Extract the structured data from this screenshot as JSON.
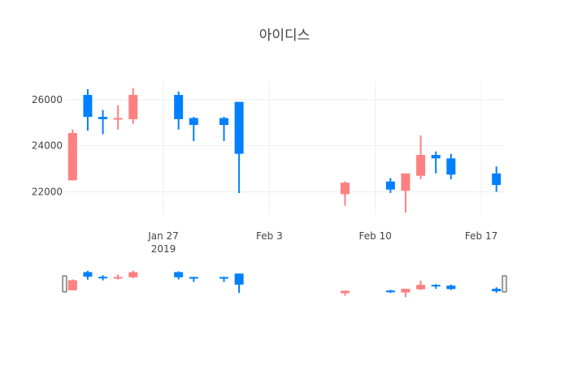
{
  "chart_data": {
    "type": "candlestick",
    "title": "아이디스",
    "xlabel": "",
    "ylabel": "",
    "ylim": [
      21000,
      26800
    ],
    "xlim": [
      "2019-01-21",
      "2019-02-18"
    ],
    "y_ticks": [
      22000,
      24000,
      26000
    ],
    "y_tick_labels": [
      "22000",
      "24000",
      "26000"
    ],
    "x_ticks": [
      "2019-01-27",
      "2019-02-03",
      "2019-02-10",
      "2019-02-17"
    ],
    "x_tick_labels": [
      "Jan 27",
      "Feb 3",
      "Feb 10",
      "Feb 17"
    ],
    "x_year_label": "2019",
    "grid": true,
    "increasing_color": "#0080ff",
    "decreasing_color": "#ff8080",
    "rangeslider": true,
    "candles": [
      {
        "date": "2019-01-21",
        "open": 24550,
        "high": 24700,
        "low": 22500,
        "close": 22500
      },
      {
        "date": "2019-01-22",
        "open": 25250,
        "high": 26450,
        "low": 24650,
        "close": 26200
      },
      {
        "date": "2019-01-23",
        "open": 25150,
        "high": 25550,
        "low": 24500,
        "close": 25250
      },
      {
        "date": "2019-01-24",
        "open": 25200,
        "high": 25750,
        "low": 24700,
        "close": 25150
      },
      {
        "date": "2019-01-25",
        "open": 26200,
        "high": 26500,
        "low": 24950,
        "close": 25150
      },
      {
        "date": "2019-01-28",
        "open": 25150,
        "high": 26350,
        "low": 24700,
        "close": 26200
      },
      {
        "date": "2019-01-29",
        "open": 24900,
        "high": 25250,
        "low": 24200,
        "close": 25200
      },
      {
        "date": "2019-01-31",
        "open": 24900,
        "high": 25250,
        "low": 24200,
        "close": 25200
      },
      {
        "date": "2019-02-01",
        "open": 23650,
        "high": 25900,
        "low": 21950,
        "close": 25900
      },
      {
        "date": "2019-02-08",
        "open": 22400,
        "high": 22450,
        "low": 21400,
        "close": 21900
      },
      {
        "date": "2019-02-11",
        "open": 22100,
        "high": 22600,
        "low": 21950,
        "close": 22450
      },
      {
        "date": "2019-02-12",
        "open": 22800,
        "high": 22800,
        "low": 21100,
        "close": 22050
      },
      {
        "date": "2019-02-13",
        "open": 23600,
        "high": 24450,
        "low": 22550,
        "close": 22700
      },
      {
        "date": "2019-02-14",
        "open": 23450,
        "high": 23750,
        "low": 22800,
        "close": 23600
      },
      {
        "date": "2019-02-15",
        "open": 22750,
        "high": 23650,
        "low": 22550,
        "close": 23450
      },
      {
        "date": "2019-02-18",
        "open": 22300,
        "high": 23100,
        "low": 22000,
        "close": 22800
      }
    ]
  }
}
